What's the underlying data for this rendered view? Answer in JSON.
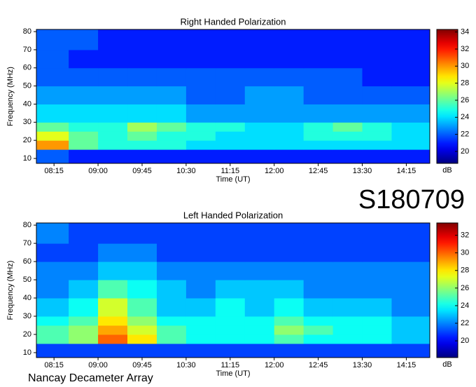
{
  "chart_data": [
    {
      "type": "heatmap",
      "title": "Right Handed Polarization",
      "x_label": "Time (UT)",
      "y_label": "Frequency (MHz)",
      "colorbar_label": "dB",
      "x": [
        7.95,
        8.5,
        9.0,
        9.5,
        10.0,
        10.5,
        11.0,
        11.5,
        12.0,
        12.5,
        13.0,
        13.5,
        14.0,
        14.65
      ],
      "y": [
        10,
        15,
        20,
        25,
        30,
        40,
        50,
        60,
        70,
        80
      ],
      "z": [
        [
          22,
          21,
          21,
          21,
          21,
          21,
          21,
          21,
          21,
          21,
          21,
          21,
          21
        ],
        [
          30,
          26,
          25,
          25,
          25,
          24,
          24,
          24,
          24,
          24,
          24,
          24,
          24
        ],
        [
          28,
          26,
          25,
          26,
          25,
          25,
          24,
          24,
          24,
          25,
          25,
          25,
          24
        ],
        [
          26,
          25,
          25,
          27,
          26,
          25,
          25,
          24,
          24,
          25,
          26,
          25,
          24
        ],
        [
          24,
          24,
          24,
          24,
          24,
          23,
          23,
          23,
          23,
          23,
          23,
          23,
          23
        ],
        [
          23,
          23,
          23,
          23,
          23,
          22,
          22,
          23,
          23,
          22,
          22,
          22,
          22
        ],
        [
          22,
          22,
          22,
          22,
          22,
          22,
          22,
          22,
          22,
          22,
          22,
          21,
          21
        ],
        [
          22,
          21,
          21,
          21,
          21,
          21,
          21,
          21,
          21,
          21,
          21,
          21,
          21
        ],
        [
          22,
          22,
          21,
          21,
          21,
          21,
          21,
          21,
          21,
          21,
          21,
          21,
          21
        ]
      ],
      "xlim": [
        7.95,
        14.65
      ],
      "xticks": [
        {
          "value": 8.25,
          "label": "08:15"
        },
        {
          "value": 9.0,
          "label": "09:00"
        },
        {
          "value": 9.75,
          "label": "09:45"
        },
        {
          "value": 10.5,
          "label": "10:30"
        },
        {
          "value": 11.25,
          "label": "11:15"
        },
        {
          "value": 12.0,
          "label": "12:00"
        },
        {
          "value": 12.75,
          "label": "12:45"
        },
        {
          "value": 13.5,
          "label": "13:30"
        },
        {
          "value": 14.25,
          "label": "14:15"
        }
      ],
      "ylim": [
        7.3,
        81.2
      ],
      "yticks": [
        10,
        20,
        30,
        40,
        50,
        60,
        70,
        80
      ],
      "clim": [
        18.6,
        34.3
      ],
      "cticks": [
        20,
        22,
        24,
        26,
        28,
        30,
        32,
        34
      ],
      "colormap": "jet"
    },
    {
      "type": "heatmap",
      "title": "Left Handed Polarization",
      "x_label": "Time (UT)",
      "y_label": "Frequency (MHz)",
      "colorbar_label": "dB",
      "x": [
        7.95,
        8.5,
        9.0,
        9.5,
        10.0,
        10.5,
        11.0,
        11.5,
        12.0,
        12.5,
        13.0,
        13.5,
        14.0,
        14.65
      ],
      "y": [
        10,
        15,
        20,
        25,
        30,
        40,
        50,
        60,
        70,
        80
      ],
      "z": [
        [
          21,
          21,
          21,
          21,
          21,
          21,
          21,
          21,
          21,
          21,
          21,
          21,
          21
        ],
        [
          25,
          26,
          30,
          28,
          25,
          24,
          24,
          24,
          25,
          24,
          24,
          24,
          23
        ],
        [
          25,
          26,
          29,
          27,
          25,
          24,
          24,
          24,
          26,
          25,
          24,
          24,
          23
        ],
        [
          24,
          25,
          28,
          26,
          24,
          24,
          24,
          24,
          25,
          24,
          24,
          24,
          23
        ],
        [
          23,
          24,
          27,
          25,
          23,
          23,
          24,
          23,
          24,
          23,
          23,
          23,
          22
        ],
        [
          22,
          23,
          25,
          24,
          23,
          22,
          23,
          23,
          23,
          22,
          22,
          22,
          22
        ],
        [
          22,
          22,
          23,
          23,
          22,
          22,
          22,
          22,
          22,
          22,
          22,
          22,
          22
        ],
        [
          21,
          21,
          22,
          22,
          21,
          21,
          21,
          21,
          21,
          21,
          21,
          21,
          21
        ],
        [
          22,
          21,
          21,
          21,
          21,
          21,
          21,
          21,
          21,
          21,
          21,
          21,
          21
        ]
      ],
      "xlim": [
        7.95,
        14.65
      ],
      "xticks": [
        {
          "value": 8.25,
          "label": "08:15"
        },
        {
          "value": 9.0,
          "label": "09:00"
        },
        {
          "value": 9.75,
          "label": "09:45"
        },
        {
          "value": 10.5,
          "label": "10:30"
        },
        {
          "value": 11.25,
          "label": "11:15"
        },
        {
          "value": 12.0,
          "label": "12:00"
        },
        {
          "value": 12.75,
          "label": "12:45"
        },
        {
          "value": 13.5,
          "label": "13:30"
        },
        {
          "value": 14.25,
          "label": "14:15"
        }
      ],
      "ylim": [
        7.3,
        81.2
      ],
      "yticks": [
        10,
        20,
        30,
        40,
        50,
        60,
        70,
        80
      ],
      "clim": [
        18.1,
        33.4
      ],
      "cticks": [
        20,
        22,
        24,
        26,
        28,
        30,
        32
      ],
      "colormap": "jet"
    }
  ],
  "labels": {
    "date_code": "S180709",
    "instrument": "Nancay Decameter Array"
  }
}
